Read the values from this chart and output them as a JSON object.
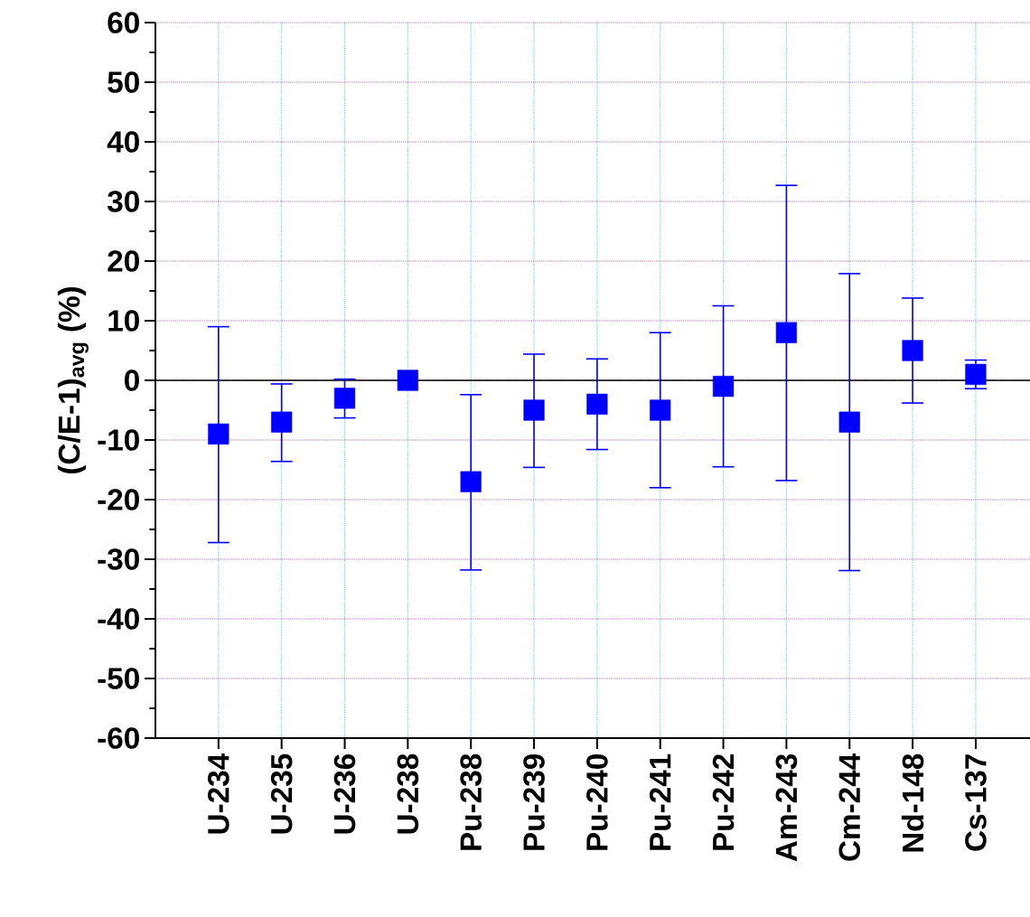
{
  "chart_data": {
    "type": "scatter",
    "ylabel": "(C/E-1)$_{avg}$ (%)",
    "categories": [
      "U-234",
      "U-235",
      "U-236",
      "U-238",
      "Pu-238",
      "Pu-239",
      "Pu-240",
      "Pu-241",
      "Pu-242",
      "Am-243",
      "Cm-244",
      "Nd-148",
      "Cs-137"
    ],
    "values": [
      -9,
      -7,
      -3,
      0,
      -17,
      -5,
      -4,
      -5,
      -1,
      8,
      -7,
      5,
      1
    ],
    "errors": [
      [
        -27.2,
        9.0
      ],
      [
        -13.6,
        -0.6
      ],
      [
        -6.3,
        0.2
      ],
      null,
      [
        -31.8,
        -2.4
      ],
      [
        -14.6,
        4.4
      ],
      [
        -11.6,
        3.6
      ],
      [
        -18.0,
        8.0
      ],
      [
        -14.5,
        12.5
      ],
      [
        -16.8,
        32.7
      ],
      [
        -31.9,
        17.9
      ],
      [
        -3.8,
        13.8
      ],
      [
        -1.4,
        3.4
      ]
    ],
    "color": "#0000ff",
    "marker": "square",
    "ylim": [
      -60,
      60
    ],
    "yticks": [
      -60,
      -50,
      -40,
      -30,
      -20,
      -10,
      0,
      10,
      20,
      30,
      40,
      50,
      60
    ],
    "grid": true,
    "ref_lines": [
      {
        "axis": "y",
        "value": 0,
        "color": "#000000"
      }
    ]
  }
}
